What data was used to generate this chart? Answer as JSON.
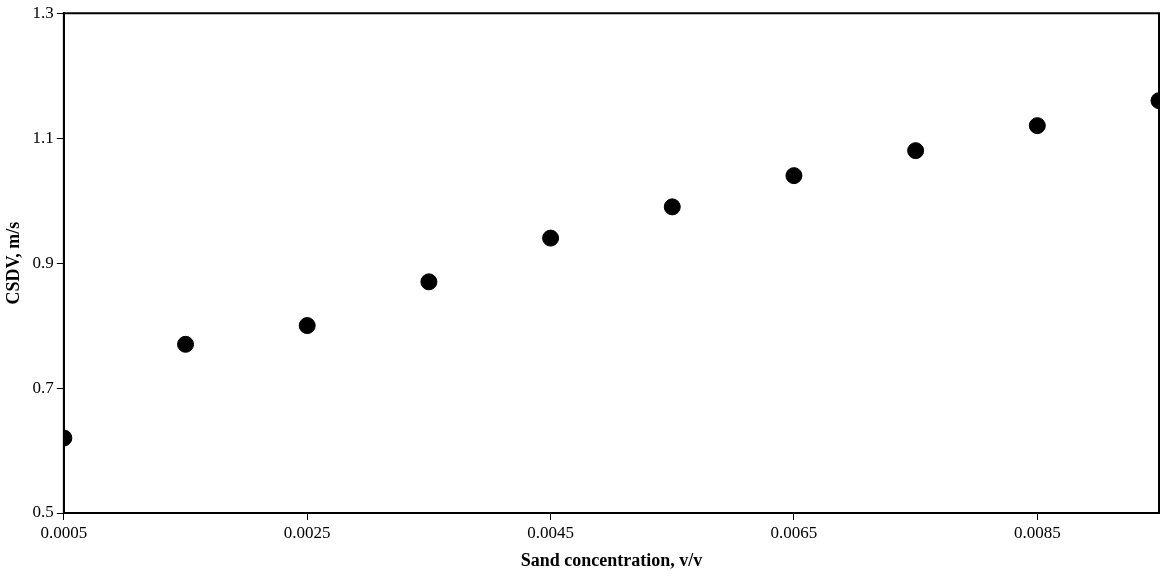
{
  "chart_data": {
    "type": "scatter",
    "xlabel": "Sand concentration, v/v",
    "ylabel": "CSDV, m/s",
    "x": [
      0.0005,
      0.0015,
      0.0025,
      0.0035,
      0.0045,
      0.0055,
      0.0065,
      0.0075,
      0.0085,
      0.0095
    ],
    "series": [
      {
        "color": "#000000",
        "values": [
          0.62,
          0.77,
          0.8,
          0.87,
          0.94,
          0.99,
          1.04,
          1.08,
          1.12,
          1.16
        ]
      }
    ],
    "xlim": [
      0.0005,
      0.0095
    ],
    "xticks": [
      0.0005,
      0.0025,
      0.0045,
      0.0065,
      0.0085
    ],
    "ylim": [
      0.5,
      1.3
    ],
    "yticks": [
      0.5,
      0.7,
      0.9,
      1.1,
      1.3
    ],
    "grid": false,
    "legend": false,
    "marker": "circle"
  }
}
